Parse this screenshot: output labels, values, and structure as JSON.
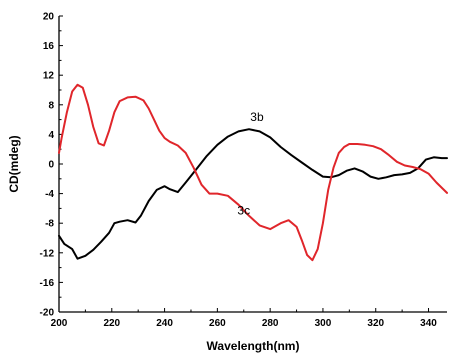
{
  "chart_data": {
    "type": "line",
    "xlabel": "Wavelength(nm)",
    "ylabel": "CD(mdeg)",
    "xlim": [
      200,
      347
    ],
    "ylim": [
      -20,
      20
    ],
    "xticks": [
      200,
      220,
      240,
      260,
      280,
      300,
      320,
      340
    ],
    "yticks": [
      20,
      16,
      12,
      8,
      4,
      0,
      -4,
      -8,
      -12,
      -16,
      -20
    ],
    "grid": false,
    "series": [
      {
        "name": "3b",
        "color": "#000000",
        "label_at": [
          275,
          5.8
        ],
        "x": [
          200,
          202,
          205,
          207,
          210,
          213,
          216,
          219,
          221,
          223,
          226,
          229,
          231,
          234,
          237,
          240,
          242,
          245,
          248,
          252,
          256,
          260,
          264,
          268,
          272,
          276,
          280,
          284,
          288,
          292,
          296,
          300,
          303,
          306,
          309,
          312,
          315,
          318,
          321,
          324,
          327,
          330,
          333,
          336,
          339,
          342,
          345,
          347
        ],
        "y": [
          -9.7,
          -10.8,
          -11.5,
          -12.8,
          -12.4,
          -11.6,
          -10.5,
          -9.3,
          -8.0,
          -7.8,
          -7.6,
          -7.9,
          -7.0,
          -5.0,
          -3.5,
          -3.0,
          -3.4,
          -3.8,
          -2.5,
          -0.7,
          1.1,
          2.6,
          3.7,
          4.4,
          4.7,
          4.4,
          3.6,
          2.3,
          1.2,
          0.2,
          -0.8,
          -1.7,
          -1.8,
          -1.5,
          -0.9,
          -0.6,
          -1.0,
          -1.7,
          -2.0,
          -1.8,
          -1.5,
          -1.4,
          -1.2,
          -0.6,
          0.6,
          0.9,
          0.8,
          0.8
        ]
      },
      {
        "name": "3c",
        "color": "#e0262b",
        "label_at": [
          270,
          -6.8
        ],
        "x": [
          200,
          201,
          203,
          205,
          207,
          209,
          211,
          213,
          215,
          217,
          219,
          221,
          223,
          226,
          229,
          232,
          234,
          236,
          238,
          240,
          242,
          245,
          248,
          251,
          254,
          257,
          260,
          264,
          268,
          272,
          276,
          280,
          284,
          287,
          290,
          292,
          294,
          296,
          298,
          300,
          302,
          304,
          306,
          308,
          310,
          313,
          316,
          319,
          322,
          325,
          328,
          331,
          334,
          337,
          340,
          343,
          347
        ],
        "y": [
          1.5,
          3.5,
          7.0,
          9.8,
          10.7,
          10.3,
          8.0,
          5.0,
          2.8,
          2.5,
          4.5,
          7.0,
          8.5,
          9.0,
          9.1,
          8.6,
          7.5,
          6.0,
          4.5,
          3.5,
          3.0,
          2.5,
          1.5,
          -0.5,
          -2.8,
          -4.0,
          -4.0,
          -4.3,
          -5.5,
          -7.0,
          -8.3,
          -8.8,
          -8.0,
          -7.6,
          -8.5,
          -10.3,
          -12.3,
          -13.0,
          -11.5,
          -8.0,
          -3.5,
          -0.5,
          1.5,
          2.3,
          2.7,
          2.7,
          2.6,
          2.4,
          2.0,
          1.2,
          0.3,
          -0.2,
          -0.4,
          -0.7,
          -1.3,
          -2.5,
          -3.9
        ]
      }
    ]
  }
}
